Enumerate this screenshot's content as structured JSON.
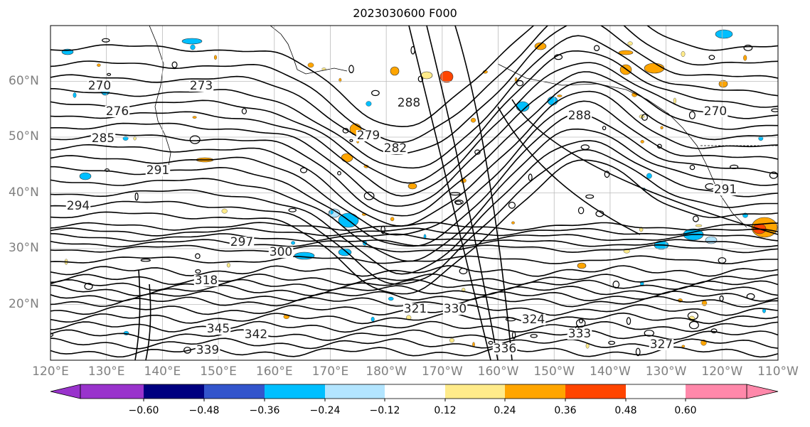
{
  "title": "2023030600 F000",
  "map": {
    "projection": "PlateCarree",
    "lon_range": [
      120,
      250
    ],
    "lat_range": [
      10,
      70
    ],
    "gridlines": true,
    "contour_field": "isentropic contours (K)",
    "contour_labels": [
      "270",
      "273",
      "276",
      "279",
      "282",
      "285",
      "288",
      "291",
      "294",
      "297",
      "300",
      "318",
      "321",
      "324",
      "327",
      "330",
      "333",
      "336",
      "339",
      "342",
      "345"
    ],
    "lat_ticks": [
      "60°N",
      "50°N",
      "40°N",
      "30°N",
      "20°N"
    ],
    "lon_ticks": [
      "120°E",
      "130°E",
      "140°E",
      "150°E",
      "160°E",
      "170°E",
      "180°W",
      "170°W",
      "160°W",
      "150°W",
      "140°W",
      "130°W",
      "120°W",
      "110°W"
    ]
  },
  "colorbar": {
    "ticks": [
      "−0.60",
      "−0.48",
      "−0.36",
      "−0.24",
      "−0.12",
      "0.12",
      "0.24",
      "0.36",
      "0.48",
      "0.60"
    ],
    "colors": [
      "#9933cc",
      "#000080",
      "#3355cc",
      "#00bfff",
      "#b3e5ff",
      "#ffffff",
      "#ffeb8a",
      "#ffa500",
      "#ff4500",
      "#b22222",
      "#ff88aa"
    ],
    "extend": "both"
  }
}
